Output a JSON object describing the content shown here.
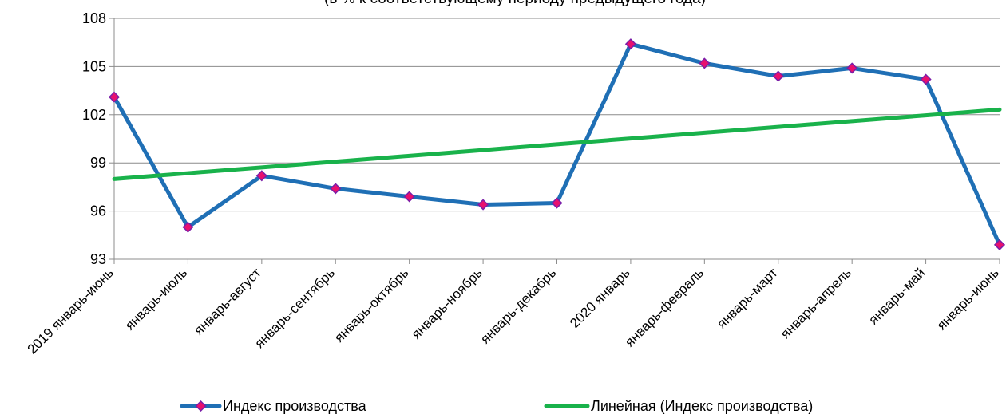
{
  "chart_data": {
    "type": "line",
    "title": "(в % к соответствующему периоду предыдущего года)",
    "xlabel": "",
    "ylabel": "",
    "categories": [
      "2019 январь-июнь",
      "январь-июль",
      "январь-август",
      "январь-сентябрь",
      "январь-октябрь",
      "январь-ноябрь",
      "январь-декабрь",
      "2020 январь",
      "январь-февраль",
      "январь-март",
      "январь-апрель",
      "январь-май",
      "январь-июнь"
    ],
    "series": [
      {
        "name": "Индекс производства",
        "values": [
          103.1,
          95.0,
          98.2,
          97.4,
          96.9,
          96.4,
          96.5,
          106.4,
          105.2,
          104.4,
          104.9,
          104.2,
          93.9
        ],
        "line_color": "#1f6fb5",
        "marker_fill": "#e8106e",
        "marker_stroke": "#7a1ea8"
      },
      {
        "name": "Линейная (Индекс производства)",
        "trendline": true,
        "values": [
          98.0,
          98.36,
          98.72,
          99.08,
          99.44,
          99.8,
          100.16,
          100.52,
          100.88,
          101.24,
          101.6,
          101.96,
          102.32
        ],
        "line_color": "#19b24b"
      }
    ],
    "ylim": [
      93,
      108
    ],
    "yticks": [
      93,
      96,
      99,
      102,
      105,
      108
    ],
    "grid": true,
    "legend_position": "bottom"
  }
}
